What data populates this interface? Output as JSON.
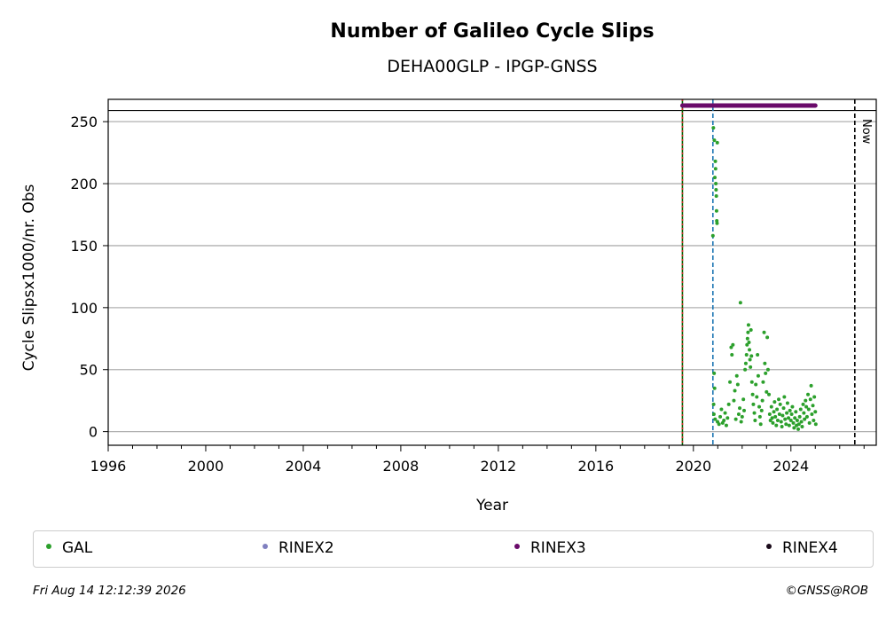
{
  "chart_data": {
    "type": "scatter",
    "title": "Number of Galileo Cycle Slips",
    "subtitle": "DEHA00GLP - IPGP-GNSS",
    "xlabel": "Year",
    "ylabel": "Cycle Slipsx1000/nr. Obs",
    "xlim": [
      1996,
      2027.5
    ],
    "ylim": [
      -11,
      268
    ],
    "x_ticks": [
      1996,
      2000,
      2004,
      2008,
      2012,
      2016,
      2020,
      2024
    ],
    "y_ticks": [
      0,
      50,
      100,
      150,
      200,
      250
    ],
    "grid": "horizontal",
    "legend_placement": "below",
    "series": [
      {
        "name": "GAL",
        "color": "#2ca02c",
        "points": [
          [
            2020.8,
            158
          ],
          [
            2020.82,
            245
          ],
          [
            2020.86,
            235
          ],
          [
            2020.88,
            205
          ],
          [
            2020.9,
            218
          ],
          [
            2020.91,
            212
          ],
          [
            2020.92,
            200
          ],
          [
            2020.93,
            195
          ],
          [
            2020.94,
            190
          ],
          [
            2020.95,
            178
          ],
          [
            2020.96,
            170
          ],
          [
            2020.97,
            168
          ],
          [
            2020.98,
            233
          ],
          [
            2020.85,
            47
          ],
          [
            2020.87,
            35
          ],
          [
            2020.83,
            22
          ],
          [
            2020.84,
            14
          ],
          [
            2020.89,
            10
          ],
          [
            2020.99,
            8
          ],
          [
            2021.05,
            6
          ],
          [
            2021.1,
            12
          ],
          [
            2021.15,
            18
          ],
          [
            2021.2,
            7
          ],
          [
            2021.25,
            9
          ],
          [
            2021.3,
            15
          ],
          [
            2021.35,
            5
          ],
          [
            2021.4,
            11
          ],
          [
            2021.45,
            22
          ],
          [
            2021.5,
            40
          ],
          [
            2021.55,
            68
          ],
          [
            2021.58,
            62
          ],
          [
            2021.62,
            70
          ],
          [
            2021.66,
            25
          ],
          [
            2021.7,
            33
          ],
          [
            2021.74,
            10
          ],
          [
            2021.78,
            45
          ],
          [
            2021.82,
            38
          ],
          [
            2021.86,
            14
          ],
          [
            2021.9,
            19
          ],
          [
            2021.93,
            104
          ],
          [
            2021.96,
            8
          ],
          [
            2022.0,
            12
          ],
          [
            2022.05,
            26
          ],
          [
            2022.08,
            17
          ],
          [
            2022.12,
            50
          ],
          [
            2022.15,
            55
          ],
          [
            2022.18,
            62
          ],
          [
            2022.2,
            70
          ],
          [
            2022.22,
            75
          ],
          [
            2022.24,
            80
          ],
          [
            2022.26,
            86
          ],
          [
            2022.28,
            72
          ],
          [
            2022.3,
            66
          ],
          [
            2022.32,
            58
          ],
          [
            2022.34,
            52
          ],
          [
            2022.36,
            82
          ],
          [
            2022.38,
            61
          ],
          [
            2022.4,
            40
          ],
          [
            2022.43,
            30
          ],
          [
            2022.46,
            22
          ],
          [
            2022.5,
            15
          ],
          [
            2022.53,
            9
          ],
          [
            2022.56,
            38
          ],
          [
            2022.6,
            28
          ],
          [
            2022.63,
            62
          ],
          [
            2022.66,
            45
          ],
          [
            2022.7,
            20
          ],
          [
            2022.73,
            12
          ],
          [
            2022.76,
            6
          ],
          [
            2022.8,
            17
          ],
          [
            2022.83,
            25
          ],
          [
            2022.86,
            40
          ],
          [
            2022.9,
            80
          ],
          [
            2022.93,
            55
          ],
          [
            2022.96,
            47
          ],
          [
            2023.0,
            32
          ],
          [
            2023.03,
            76
          ],
          [
            2023.06,
            50
          ],
          [
            2023.1,
            30
          ],
          [
            2023.13,
            14
          ],
          [
            2023.16,
            9
          ],
          [
            2023.2,
            20
          ],
          [
            2023.23,
            11
          ],
          [
            2023.26,
            7
          ],
          [
            2023.3,
            16
          ],
          [
            2023.33,
            24
          ],
          [
            2023.36,
            12
          ],
          [
            2023.4,
            5
          ],
          [
            2023.43,
            18
          ],
          [
            2023.46,
            9
          ],
          [
            2023.5,
            26
          ],
          [
            2023.53,
            14
          ],
          [
            2023.56,
            22
          ],
          [
            2023.6,
            8
          ],
          [
            2023.63,
            4
          ],
          [
            2023.66,
            13
          ],
          [
            2023.7,
            19
          ],
          [
            2023.73,
            28
          ],
          [
            2023.76,
            10
          ],
          [
            2023.8,
            6
          ],
          [
            2023.83,
            15
          ],
          [
            2023.86,
            23
          ],
          [
            2023.9,
            11
          ],
          [
            2023.93,
            5
          ],
          [
            2023.96,
            17
          ],
          [
            2024.0,
            9
          ],
          [
            2024.03,
            14
          ],
          [
            2024.06,
            20
          ],
          [
            2024.1,
            7
          ],
          [
            2024.13,
            3
          ],
          [
            2024.16,
            11
          ],
          [
            2024.2,
            16
          ],
          [
            2024.23,
            5
          ],
          [
            2024.26,
            9
          ],
          [
            2024.3,
            2
          ],
          [
            2024.33,
            6
          ],
          [
            2024.36,
            12
          ],
          [
            2024.4,
            18
          ],
          [
            2024.43,
            8
          ],
          [
            2024.46,
            4
          ],
          [
            2024.5,
            22
          ],
          [
            2024.53,
            15
          ],
          [
            2024.56,
            10
          ],
          [
            2024.6,
            25
          ],
          [
            2024.63,
            20
          ],
          [
            2024.66,
            12
          ],
          [
            2024.7,
            30
          ],
          [
            2024.73,
            18
          ],
          [
            2024.76,
            7
          ],
          [
            2024.8,
            26
          ],
          [
            2024.83,
            37
          ],
          [
            2024.86,
            14
          ],
          [
            2024.9,
            21
          ],
          [
            2024.93,
            9
          ],
          [
            2024.96,
            28
          ],
          [
            2025.0,
            16
          ],
          [
            2025.02,
            6
          ]
        ]
      },
      {
        "name": "RINEX2",
        "color": "#8080c0",
        "points": []
      },
      {
        "name": "RINEX3",
        "color": "#6a0a6a",
        "x_range": [
          2019.55,
          2025.0
        ],
        "y": 263
      },
      {
        "name": "RINEX4",
        "color": "#1a0a1a",
        "points": []
      }
    ],
    "vertical_lines": [
      {
        "x": 2019.55,
        "style": "solid",
        "color": "#006400"
      },
      {
        "x": 2019.55,
        "style": "dotted",
        "color": "#d62728"
      },
      {
        "x": 2020.8,
        "style": "dashed",
        "color": "#1f77b4"
      },
      {
        "x": 2026.62,
        "style": "dashed",
        "color": "#000000",
        "label": "Now"
      }
    ],
    "horizontal_line": 259
  },
  "footer": {
    "timestamp": "Fri Aug 14 12:12:39 2026",
    "credit": "©GNSS@ROB"
  }
}
